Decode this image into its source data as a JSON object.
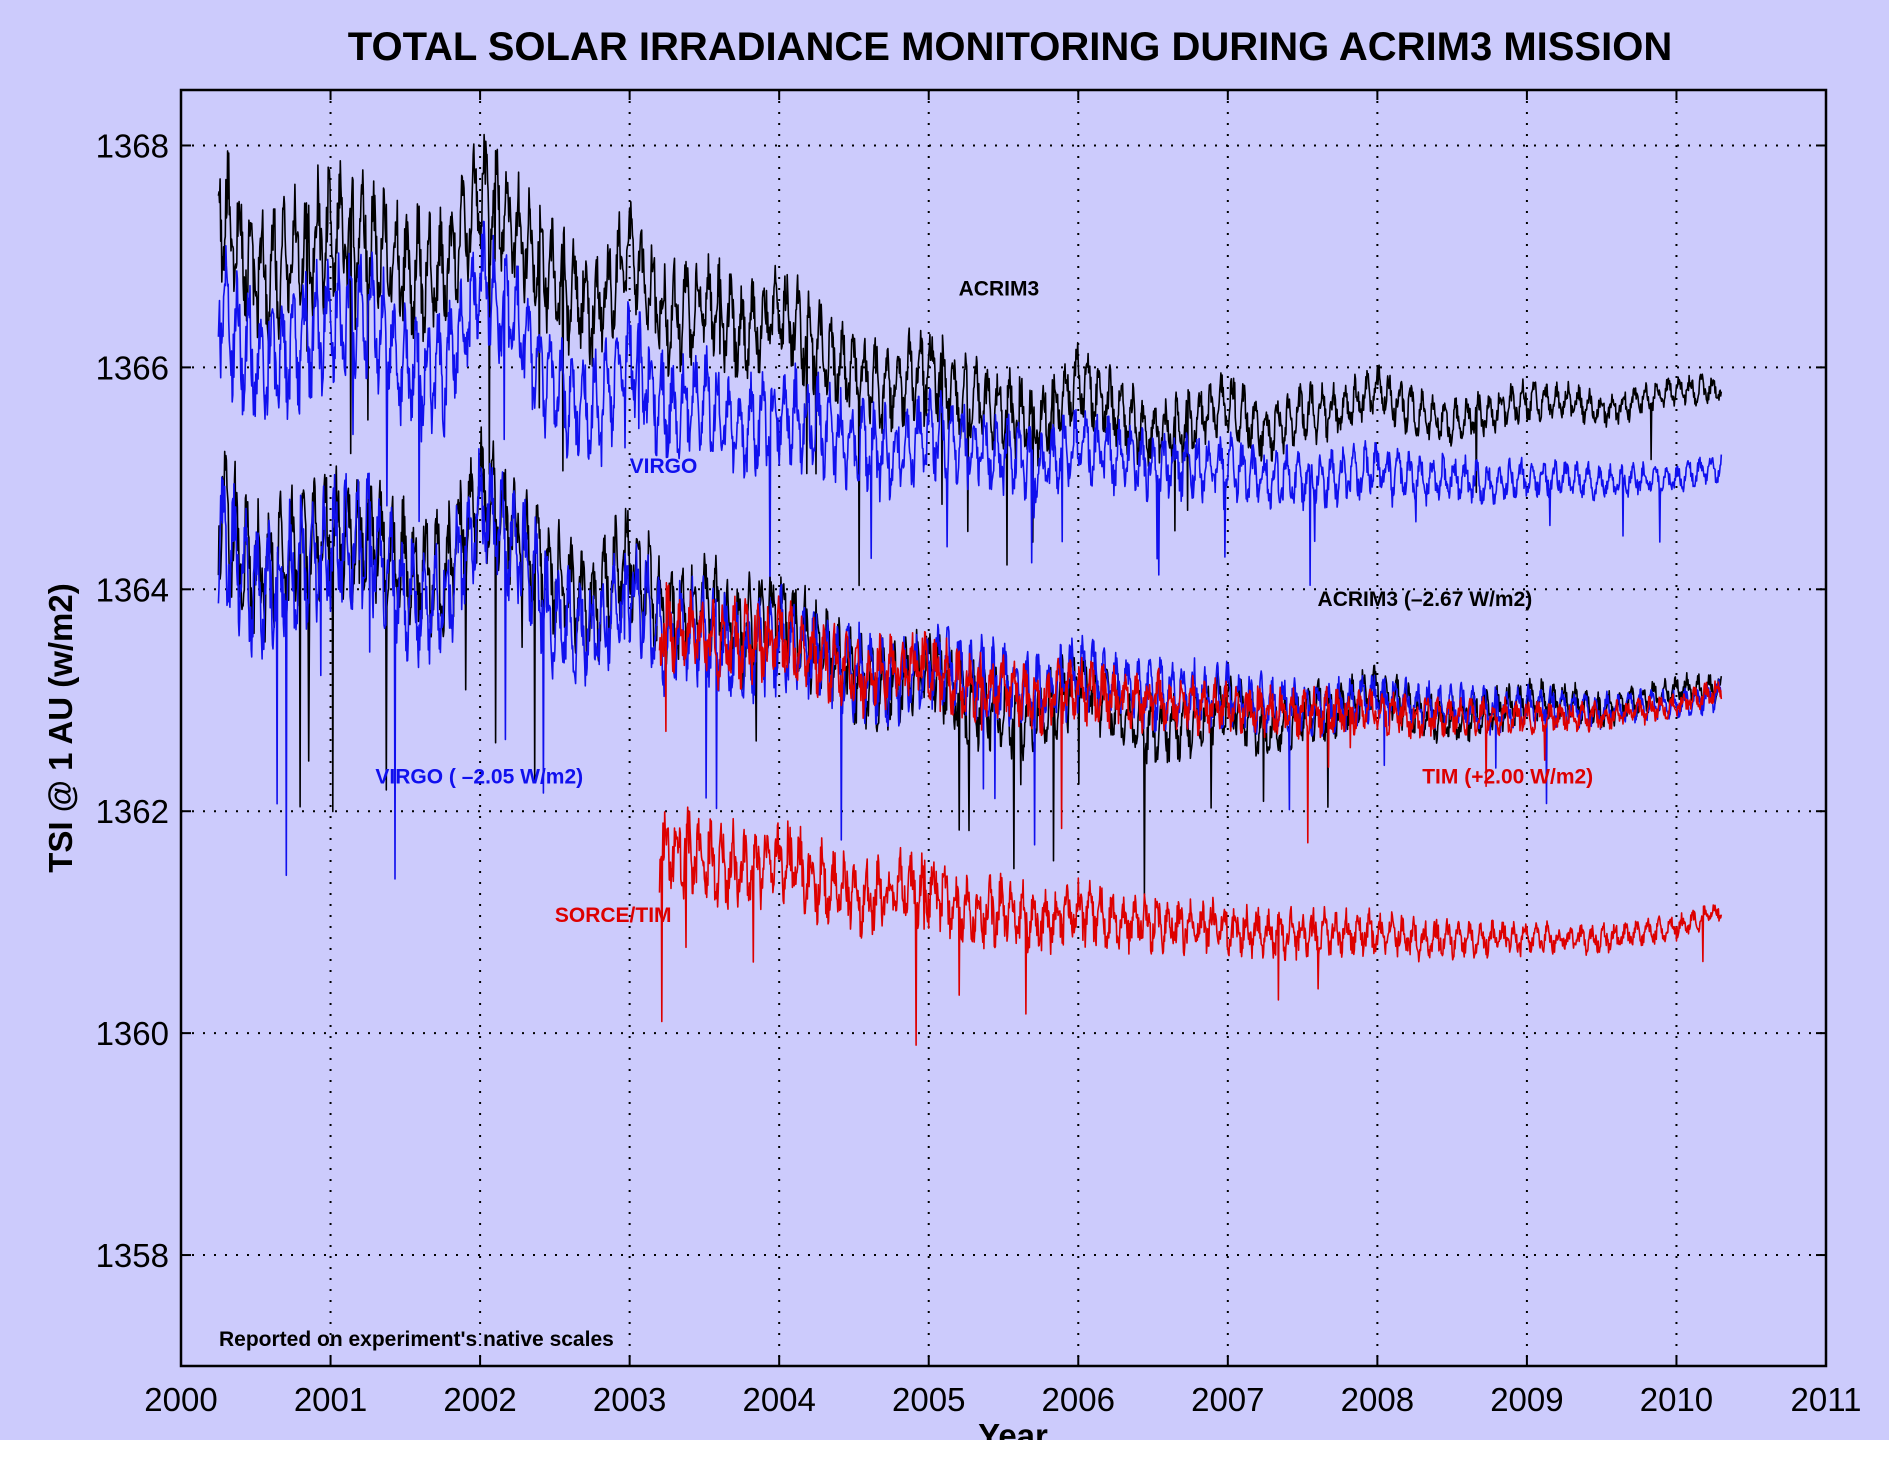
{
  "chart_data": {
    "type": "line",
    "title": "TOTAL SOLAR IRRADIANCE MONITORING DURING ACRIM3 MISSION",
    "xlabel": "Year",
    "ylabel": "TSI @ 1 AU (w/m2)",
    "xlim": [
      2000,
      2011
    ],
    "ylim": [
      1357,
      1368.5
    ],
    "xticks": [
      2000,
      2001,
      2002,
      2003,
      2004,
      2005,
      2006,
      2007,
      2008,
      2009,
      2010,
      2011
    ],
    "yticks": [
      1358,
      1360,
      1362,
      1364,
      1366,
      1368
    ],
    "grid": true,
    "background": "#cccbfc",
    "note": "Reported on experiment's native scales",
    "annotations": [
      {
        "text": "ACRIM3",
        "x": 2005.2,
        "y": 1366.65,
        "color": "#000000"
      },
      {
        "text": "VIRGO",
        "x": 2003.0,
        "y": 1365.05,
        "color": "#1010ee"
      },
      {
        "text": "ACRIM3 (–2.67 W/m2)",
        "x": 2007.6,
        "y": 1363.85,
        "color": "#000000"
      },
      {
        "text": "VIRGO ( –2.05 W/m2)",
        "x": 2001.3,
        "y": 1362.25,
        "color": "#1010ee"
      },
      {
        "text": "TIM (+2.00 W/m2)",
        "x": 2008.3,
        "y": 1362.25,
        "color": "#dd0000"
      },
      {
        "text": "SORCE/TIM",
        "x": 2002.5,
        "y": 1361.0,
        "color": "#dd0000"
      }
    ],
    "series": [
      {
        "name": "ACRIM3",
        "color": "#000000",
        "x": [
          2000.25,
          2000.5,
          2000.75,
          2001.0,
          2001.25,
          2001.5,
          2001.75,
          2002.0,
          2002.25,
          2002.5,
          2002.75,
          2003.0,
          2003.25,
          2003.5,
          2003.75,
          2004.0,
          2004.25,
          2004.5,
          2004.75,
          2005.0,
          2005.25,
          2005.5,
          2005.75,
          2006.0,
          2006.25,
          2006.5,
          2006.75,
          2007.0,
          2007.25,
          2007.5,
          2007.75,
          2008.0,
          2008.25,
          2008.5,
          2008.75,
          2009.0,
          2009.25,
          2009.5,
          2009.75,
          2010.0,
          2010.3
        ],
        "y": [
          1367.5,
          1366.8,
          1367.0,
          1367.2,
          1367.2,
          1366.9,
          1366.8,
          1367.6,
          1367.2,
          1366.8,
          1366.5,
          1367.0,
          1366.4,
          1366.6,
          1366.3,
          1366.5,
          1366.2,
          1365.9,
          1365.8,
          1366.0,
          1365.7,
          1365.6,
          1365.5,
          1365.9,
          1365.6,
          1365.4,
          1365.5,
          1365.7,
          1365.4,
          1365.6,
          1365.6,
          1365.8,
          1365.6,
          1365.5,
          1365.6,
          1365.7,
          1365.7,
          1365.6,
          1365.7,
          1365.8,
          1365.8
        ]
      },
      {
        "name": "VIRGO",
        "color": "#1010ee",
        "x": [
          2000.25,
          2000.5,
          2000.75,
          2001.0,
          2001.25,
          2001.5,
          2001.75,
          2002.0,
          2002.25,
          2002.5,
          2002.75,
          2003.0,
          2003.25,
          2003.5,
          2003.75,
          2004.0,
          2004.25,
          2004.5,
          2004.75,
          2005.0,
          2005.25,
          2005.5,
          2005.75,
          2006.0,
          2006.25,
          2006.5,
          2006.75,
          2007.0,
          2007.25,
          2007.5,
          2007.75,
          2008.0,
          2008.25,
          2008.5,
          2008.75,
          2009.0,
          2009.25,
          2009.5,
          2009.75,
          2010.0,
          2010.3
        ],
        "y": [
          1366.6,
          1366.0,
          1366.2,
          1366.4,
          1366.5,
          1366.0,
          1365.9,
          1366.8,
          1366.4,
          1365.8,
          1365.6,
          1366.1,
          1365.6,
          1365.7,
          1365.4,
          1365.6,
          1365.5,
          1365.3,
          1365.2,
          1365.4,
          1365.3,
          1365.2,
          1365.1,
          1365.3,
          1365.2,
          1365.1,
          1365.1,
          1365.1,
          1365.0,
          1365.0,
          1365.0,
          1365.1,
          1365.0,
          1365.0,
          1364.95,
          1365.0,
          1365.0,
          1364.95,
          1365.0,
          1365.0,
          1365.1
        ]
      },
      {
        "name": "ACRIM3 (–2.67 W/m2)",
        "color": "#000000",
        "x": [
          2000.25,
          2000.5,
          2000.75,
          2001.0,
          2001.25,
          2001.5,
          2001.75,
          2002.0,
          2002.25,
          2002.5,
          2002.75,
          2003.0,
          2003.25,
          2003.5,
          2003.75,
          2004.0,
          2004.25,
          2004.5,
          2004.75,
          2005.0,
          2005.25,
          2005.5,
          2005.75,
          2006.0,
          2006.25,
          2006.5,
          2006.75,
          2007.0,
          2007.25,
          2007.5,
          2007.75,
          2008.0,
          2008.25,
          2008.5,
          2008.75,
          2009.0,
          2009.25,
          2009.5,
          2009.75,
          2010.0,
          2010.3
        ],
        "y": [
          1364.8,
          1364.1,
          1364.3,
          1364.5,
          1364.5,
          1364.2,
          1364.1,
          1364.9,
          1364.5,
          1364.1,
          1363.8,
          1364.3,
          1363.7,
          1363.9,
          1363.6,
          1363.8,
          1363.5,
          1363.2,
          1363.1,
          1363.3,
          1363.0,
          1362.9,
          1362.8,
          1363.2,
          1362.9,
          1362.7,
          1362.8,
          1363.0,
          1362.7,
          1362.9,
          1362.9,
          1363.1,
          1362.9,
          1362.8,
          1362.9,
          1363.0,
          1363.0,
          1362.9,
          1363.0,
          1363.1,
          1363.1
        ]
      },
      {
        "name": "VIRGO ( –2.05 W/m2)",
        "color": "#1010ee",
        "x": [
          2000.25,
          2000.5,
          2000.75,
          2001.0,
          2001.25,
          2001.5,
          2001.75,
          2002.0,
          2002.25,
          2002.5,
          2002.75,
          2003.0,
          2003.25,
          2003.5,
          2003.75,
          2004.0,
          2004.25,
          2004.5,
          2004.75,
          2005.0,
          2005.25,
          2005.5,
          2005.75,
          2006.0,
          2006.25,
          2006.5,
          2006.75,
          2007.0,
          2007.25,
          2007.5,
          2007.75,
          2008.0,
          2008.25,
          2008.5,
          2008.75,
          2009.0,
          2009.25,
          2009.5,
          2009.75,
          2010.0,
          2010.3
        ],
        "y": [
          1364.55,
          1363.95,
          1364.15,
          1364.35,
          1364.45,
          1363.95,
          1363.85,
          1364.75,
          1364.35,
          1363.75,
          1363.55,
          1364.05,
          1363.55,
          1363.65,
          1363.35,
          1363.55,
          1363.45,
          1363.25,
          1363.15,
          1363.35,
          1363.25,
          1363.15,
          1363.05,
          1363.25,
          1363.15,
          1363.05,
          1363.05,
          1363.05,
          1362.95,
          1362.95,
          1362.95,
          1363.05,
          1362.95,
          1362.95,
          1362.9,
          1362.95,
          1362.95,
          1362.9,
          1362.95,
          1362.95,
          1363.05
        ]
      },
      {
        "name": "TIM (+2.00 W/m2)",
        "color": "#dd0000",
        "x": [
          2003.2,
          2003.4,
          2003.6,
          2003.8,
          2004.0,
          2004.2,
          2004.4,
          2004.6,
          2004.8,
          2005.0,
          2005.25,
          2005.5,
          2005.75,
          2006.0,
          2006.25,
          2006.5,
          2006.75,
          2007.0,
          2007.25,
          2007.5,
          2007.75,
          2008.0,
          2008.25,
          2008.5,
          2008.75,
          2009.0,
          2009.25,
          2009.5,
          2009.75,
          2010.0,
          2010.3
        ],
        "y": [
          1363.7,
          1363.6,
          1363.5,
          1363.5,
          1363.6,
          1363.4,
          1363.3,
          1363.2,
          1363.3,
          1363.3,
          1363.1,
          1363.1,
          1363.0,
          1363.1,
          1363.0,
          1363.0,
          1362.95,
          1362.95,
          1362.9,
          1362.9,
          1362.9,
          1362.9,
          1362.85,
          1362.85,
          1362.85,
          1362.85,
          1362.85,
          1362.85,
          1362.9,
          1362.95,
          1363.1
        ]
      },
      {
        "name": "SORCE/TIM",
        "color": "#dd0000",
        "x": [
          2003.2,
          2003.4,
          2003.6,
          2003.8,
          2004.0,
          2004.2,
          2004.4,
          2004.6,
          2004.8,
          2005.0,
          2005.25,
          2005.5,
          2005.75,
          2006.0,
          2006.25,
          2006.5,
          2006.75,
          2007.0,
          2007.25,
          2007.5,
          2007.75,
          2008.0,
          2008.25,
          2008.5,
          2008.75,
          2009.0,
          2009.25,
          2009.5,
          2009.75,
          2010.0,
          2010.3
        ],
        "y": [
          1361.7,
          1361.6,
          1361.5,
          1361.5,
          1361.6,
          1361.4,
          1361.3,
          1361.2,
          1361.3,
          1361.3,
          1361.1,
          1361.1,
          1361.0,
          1361.1,
          1361.0,
          1361.0,
          1360.95,
          1360.95,
          1360.9,
          1360.9,
          1360.9,
          1360.9,
          1360.85,
          1360.85,
          1360.85,
          1360.85,
          1360.85,
          1360.85,
          1360.9,
          1360.95,
          1361.1
        ]
      }
    ]
  }
}
